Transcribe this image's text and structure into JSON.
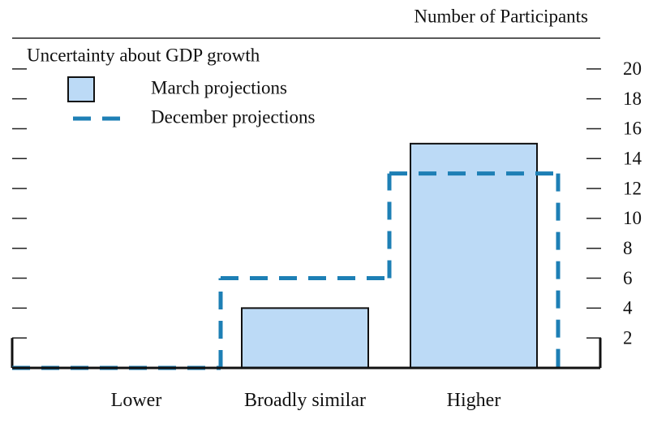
{
  "chart_data": {
    "type": "bar",
    "title": "Uncertainty about GDP growth",
    "y_axis_label": "Number of Participants",
    "categories": [
      "Lower",
      "Broadly similar",
      "Higher"
    ],
    "series": [
      {
        "name": "March projections",
        "color": "#bcdaf6",
        "values": [
          0,
          4,
          15
        ]
      },
      {
        "name": "December projections",
        "color": "#1d7fb5",
        "values": [
          0,
          6,
          13
        ]
      }
    ],
    "ylim": [
      0,
      22
    ],
    "yticks": [
      2,
      4,
      6,
      8,
      10,
      12,
      14,
      16,
      18,
      20
    ]
  }
}
